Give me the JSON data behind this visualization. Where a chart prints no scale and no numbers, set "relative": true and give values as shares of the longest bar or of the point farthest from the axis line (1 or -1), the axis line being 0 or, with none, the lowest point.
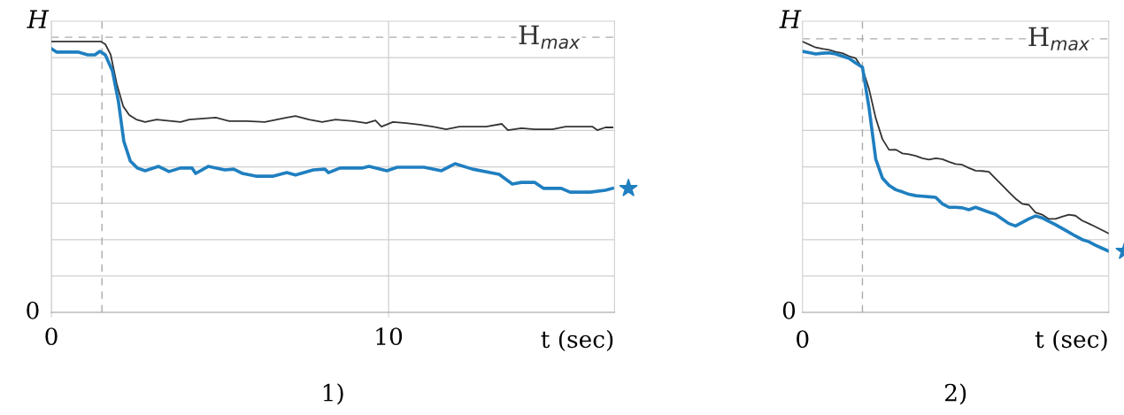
{
  "chart_data": [
    {
      "type": "line",
      "title": "1)",
      "xlabel": "t (sec)",
      "ylabel": "H",
      "relative": true,
      "grid": true,
      "x": [
        0,
        1.47,
        1.6,
        1.76,
        1.94,
        2.13,
        2.31,
        2.52,
        2.78,
        3.12,
        3.83,
        4.09,
        4.88,
        5.28,
        5.8,
        6.33,
        6.98,
        7.24,
        7.64,
        8.03,
        8.43,
        8.95,
        9.34,
        9.61,
        9.79,
        10.13,
        10.52,
        10.92,
        11.31,
        11.71,
        12.1,
        12.89,
        13.36,
        13.54,
        13.94,
        14.33,
        14.86,
        15.25,
        16.04,
        16.19,
        16.43,
        16.64
      ],
      "xlim": [
        0,
        16.7
      ],
      "xticks": [
        0,
        10
      ],
      "series": [
        {
          "color": "#333333",
          "values": [
            1.0,
            1.0,
            0.99,
            0.951,
            0.843,
            0.761,
            0.729,
            0.712,
            0.703,
            0.712,
            0.703,
            0.712,
            0.719,
            0.706,
            0.706,
            0.703,
            0.719,
            0.725,
            0.712,
            0.703,
            0.712,
            0.706,
            0.699,
            0.709,
            0.686,
            0.703,
            0.699,
            0.693,
            0.686,
            0.676,
            0.686,
            0.686,
            0.696,
            0.673,
            0.68,
            0.676,
            0.676,
            0.686,
            0.686,
            0.673,
            0.683,
            0.683
          ]
        },
        {
          "color": "#1f7fc0",
          "x": [
            0,
            0.16,
            0.81,
            1.08,
            1.29,
            1.44,
            1.6,
            1.81,
            1.99,
            2.15,
            2.34,
            2.55,
            2.78,
            3.18,
            3.49,
            3.83,
            4.17,
            4.28,
            4.65,
            5.14,
            5.41,
            5.67,
            6.06,
            6.59,
            6.98,
            7.24,
            7.77,
            8.11,
            8.22,
            8.56,
            9.21,
            9.42,
            9.95,
            10.26,
            11.05,
            11.57,
            11.97,
            12.49,
            13.28,
            13.67,
            13.94,
            14.33,
            14.59,
            15.12,
            15.38,
            15.98,
            16.43,
            16.64
          ],
          "values": [
            0.974,
            0.961,
            0.961,
            0.951,
            0.951,
            0.964,
            0.951,
            0.892,
            0.778,
            0.631,
            0.559,
            0.533,
            0.523,
            0.539,
            0.52,
            0.533,
            0.533,
            0.513,
            0.539,
            0.526,
            0.529,
            0.513,
            0.503,
            0.503,
            0.516,
            0.507,
            0.526,
            0.529,
            0.516,
            0.533,
            0.533,
            0.539,
            0.523,
            0.536,
            0.536,
            0.523,
            0.549,
            0.529,
            0.51,
            0.474,
            0.48,
            0.48,
            0.458,
            0.458,
            0.444,
            0.444,
            0.451,
            0.458
          ]
        }
      ],
      "ref_lines": [
        {
          "axis": "y",
          "value": 1.016,
          "label": "H$_{max}$",
          "color": "#aaaaaa",
          "line_style": "dashed"
        },
        {
          "axis": "x",
          "value": 1.5,
          "color": "#aaaaaa",
          "line_style": "dashed"
        }
      ],
      "annotations": [
        "0"
      ]
    },
    {
      "type": "line",
      "title": "2)",
      "xlabel": "t (sec)",
      "ylabel": "H",
      "relative": true,
      "grid": "y",
      "categories": [
        null,
        null,
        null,
        null,
        null,
        null,
        null,
        null,
        null,
        null,
        null,
        null,
        null,
        null,
        null,
        null,
        null,
        null,
        null,
        null,
        null,
        null,
        null,
        null,
        null,
        null,
        null,
        null,
        null,
        null,
        null,
        null,
        null,
        null,
        null,
        null,
        null,
        null,
        null,
        null,
        null,
        null,
        null,
        null,
        null,
        null,
        null
      ],
      "series": [
        {
          "color": "#333333",
          "values": [
            1.0,
            0.989,
            0.978,
            0.973,
            0.969,
            0.962,
            0.957,
            0.946,
            0.938,
            0.9,
            0.824,
            0.717,
            0.64,
            0.6,
            0.601,
            0.587,
            0.584,
            0.578,
            0.569,
            0.564,
            0.569,
            0.566,
            0.556,
            0.548,
            0.545,
            0.533,
            0.523,
            0.522,
            0.519,
            0.494,
            0.469,
            0.444,
            0.42,
            0.401,
            0.397,
            0.369,
            0.361,
            0.345,
            0.345,
            0.353,
            0.361,
            0.357,
            0.339,
            0.328,
            0.316,
            0.304,
            0.291
          ]
        },
        {
          "color": "#1f7fc0",
          "values": [
            0.964,
            0.959,
            0.954,
            0.957,
            0.958,
            0.954,
            0.946,
            0.938,
            0.921,
            0.905,
            0.754,
            0.566,
            0.496,
            0.469,
            0.453,
            0.445,
            0.436,
            0.431,
            0.429,
            0.427,
            0.425,
            0.401,
            0.388,
            0.388,
            0.386,
            0.379,
            0.388,
            0.379,
            0.37,
            0.362,
            0.345,
            0.328,
            0.319,
            0.332,
            0.345,
            0.356,
            0.349,
            0.336,
            0.324,
            0.31,
            0.296,
            0.282,
            0.269,
            0.261,
            0.248,
            0.237,
            0.226
          ]
        }
      ],
      "ref_lines": [
        {
          "axis": "y",
          "value": 1.01,
          "label": "H$_{max}$",
          "color": "#aaaaaa",
          "line_style": "dashed"
        }
      ],
      "annotations": [
        "0",
        "0"
      ]
    }
  ]
}
